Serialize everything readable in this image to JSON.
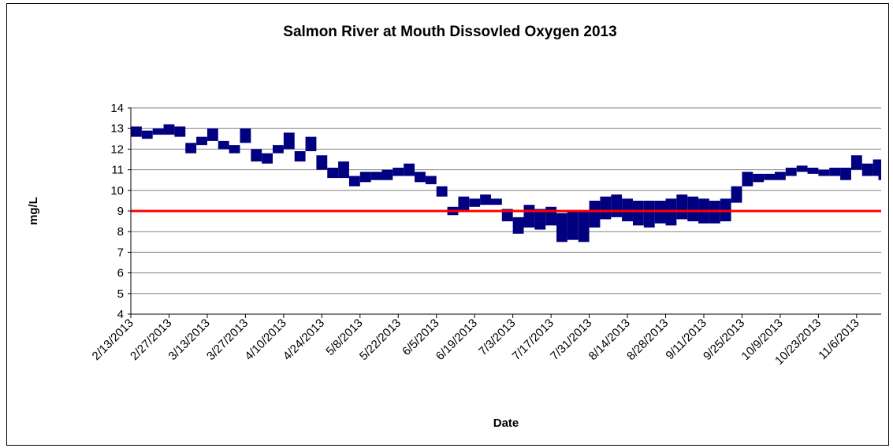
{
  "chart_data": {
    "type": "range",
    "title": "Salmon River at Mouth Dissovled Oxygen 2013",
    "x_label": "Date",
    "y_label": "mg/L",
    "x": [
      "2/13/2013",
      "2/17/2013",
      "2/21/2013",
      "2/25/2013",
      "3/1/2013",
      "3/5/2013",
      "3/9/2013",
      "3/13/2013",
      "3/17/2013",
      "3/21/2013",
      "3/25/2013",
      "3/29/2013",
      "4/2/2013",
      "4/6/2013",
      "4/10/2013",
      "4/14/2013",
      "4/18/2013",
      "4/22/2013",
      "4/26/2013",
      "4/30/2013",
      "5/4/2013",
      "5/8/2013",
      "5/12/2013",
      "5/16/2013",
      "5/20/2013",
      "5/24/2013",
      "5/28/2013",
      "6/1/2013",
      "6/5/2013",
      "6/9/2013",
      "6/13/2013",
      "6/17/2013",
      "6/21/2013",
      "6/25/2013",
      "6/29/2013",
      "7/3/2013",
      "7/7/2013",
      "7/11/2013",
      "7/15/2013",
      "7/19/2013",
      "7/23/2013",
      "7/27/2013",
      "7/31/2013",
      "8/4/2013",
      "8/8/2013",
      "8/12/2013",
      "8/16/2013",
      "8/20/2013",
      "8/24/2013",
      "8/28/2013",
      "9/1/2013",
      "9/5/2013",
      "9/9/2013",
      "9/13/2013",
      "9/17/2013",
      "9/21/2013",
      "9/25/2013",
      "9/29/2013",
      "10/3/2013",
      "10/7/2013",
      "10/11/2013",
      "10/15/2013",
      "10/19/2013",
      "10/23/2013",
      "10/27/2013",
      "10/31/2013",
      "11/4/2013",
      "11/8/2013",
      "11/12/2013",
      "11/14/2013"
    ],
    "low": [
      12.6,
      12.5,
      12.7,
      12.7,
      12.6,
      11.8,
      12.2,
      12.4,
      12.0,
      11.8,
      12.3,
      11.4,
      11.3,
      11.8,
      12.0,
      11.4,
      11.9,
      11.0,
      10.6,
      10.6,
      10.2,
      10.4,
      10.5,
      10.5,
      10.7,
      10.7,
      10.4,
      10.3,
      9.7,
      8.8,
      9.0,
      9.2,
      9.3,
      9.3,
      8.5,
      7.9,
      8.2,
      8.1,
      8.3,
      7.5,
      7.6,
      7.5,
      8.2,
      8.6,
      8.7,
      8.5,
      8.3,
      8.2,
      8.4,
      8.3,
      8.6,
      8.5,
      8.4,
      8.4,
      8.5,
      9.4,
      10.2,
      10.4,
      10.5,
      10.5,
      10.7,
      10.9,
      10.8,
      10.7,
      10.7,
      10.5,
      11.0,
      10.7,
      10.7,
      10.5
    ],
    "high": [
      13.1,
      12.9,
      13.0,
      13.2,
      13.1,
      12.3,
      12.6,
      13.0,
      12.4,
      12.2,
      13.0,
      12.0,
      11.8,
      12.2,
      12.8,
      11.9,
      12.6,
      11.7,
      11.1,
      11.4,
      10.7,
      10.9,
      10.9,
      11.0,
      11.1,
      11.3,
      10.9,
      10.7,
      10.2,
      9.2,
      9.7,
      9.6,
      9.8,
      9.6,
      9.1,
      8.7,
      9.3,
      9.1,
      9.2,
      8.9,
      9.0,
      9.0,
      9.5,
      9.7,
      9.8,
      9.6,
      9.5,
      9.5,
      9.5,
      9.6,
      9.8,
      9.7,
      9.6,
      9.5,
      9.6,
      10.2,
      10.9,
      10.8,
      10.8,
      10.9,
      11.1,
      11.2,
      11.1,
      11.0,
      11.1,
      11.1,
      11.7,
      11.3,
      11.5,
      11.0
    ],
    "color": "#000080",
    "threshold": 9,
    "threshold_color": "#ff0000",
    "xlim": [
      "2/13/2013",
      "11/15/2013"
    ],
    "xticks": [
      "2/13/2013",
      "2/27/2013",
      "3/13/2013",
      "3/27/2013",
      "4/10/2013",
      "4/24/2013",
      "5/8/2013",
      "5/22/2013",
      "6/5/2013",
      "6/19/2013",
      "7/3/2013",
      "7/17/2013",
      "7/31/2013",
      "8/14/2013",
      "8/28/2013",
      "9/11/2013",
      "9/25/2013",
      "10/9/2013",
      "10/23/2013",
      "11/6/2013"
    ],
    "ylim": [
      4,
      14
    ],
    "yticks": [
      4,
      5,
      6,
      7,
      8,
      9,
      10,
      11,
      12,
      13,
      14
    ],
    "grid": true
  }
}
